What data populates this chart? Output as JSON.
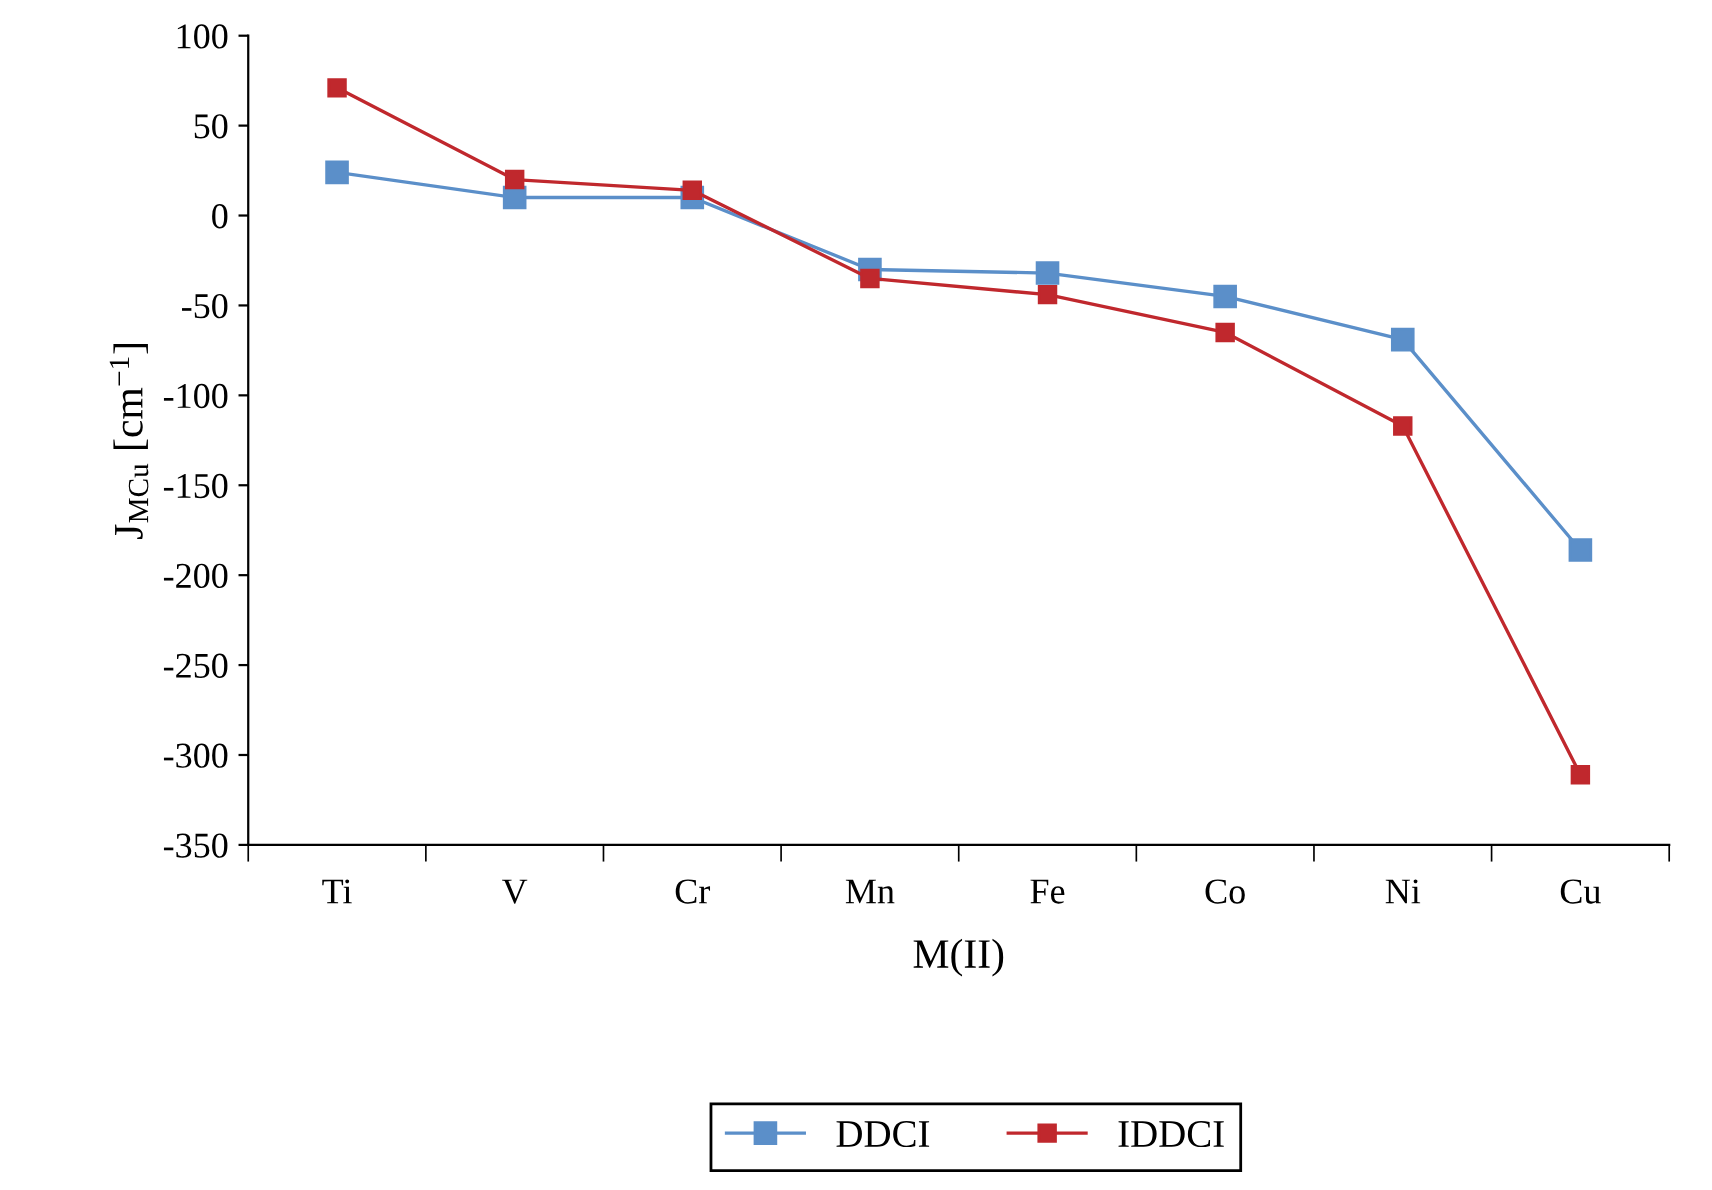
{
  "chart_data": {
    "type": "line",
    "xlabel": "M(II)",
    "ylabel": "J$_{MCu}$ [cm$^{−1}$]",
    "categories": [
      "Ti",
      "V",
      "Cr",
      "Mn",
      "Fe",
      "Co",
      "Ni",
      "Cu"
    ],
    "series": [
      {
        "name": "DDCI",
        "color": "#5b8fc9",
        "values": [
          24,
          10,
          10,
          -30,
          -32,
          -45,
          -69,
          -186
        ]
      },
      {
        "name": "IDDCI",
        "color": "#c0282d",
        "values": [
          71,
          20,
          14,
          -35,
          -44,
          -65,
          -117,
          -311
        ]
      }
    ],
    "ylim": [
      -350,
      100
    ],
    "yticks": [
      -350,
      -300,
      -250,
      -200,
      -150,
      -100,
      -50,
      0,
      50,
      100
    ],
    "grid": false,
    "legend": "bottom",
    "marker": "square",
    "line_style": "solid"
  }
}
